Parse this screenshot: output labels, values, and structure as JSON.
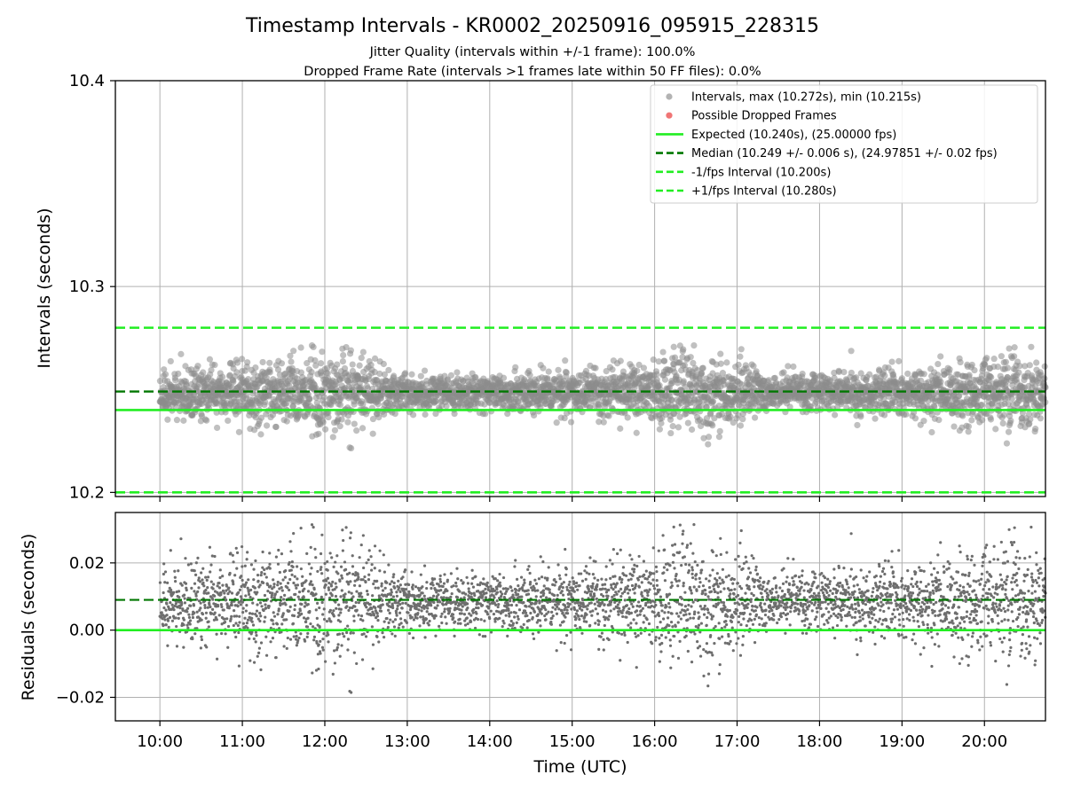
{
  "chart_data": {
    "type": "scatter",
    "title": "Timestamp Intervals - KR0002_20250916_095915_228315",
    "subtitle_lines": [
      "Jitter Quality (intervals within +/-1 frame): 100.0%",
      "Dropped Frame Rate (intervals >1 frames late within 50 FF files): 0.0%"
    ],
    "xlabel": "Time (UTC)",
    "x_tick_labels": [
      "10:00",
      "11:00",
      "12:00",
      "13:00",
      "14:00",
      "15:00",
      "16:00",
      "17:00",
      "18:00",
      "19:00",
      "20:00"
    ],
    "x_range_hours": [
      9.46,
      20.74
    ],
    "top_panel": {
      "ylabel": "Intervals (seconds)",
      "ylim": [
        10.198,
        10.4
      ],
      "y_ticks": [
        10.2,
        10.3,
        10.4
      ],
      "y_tick_labels": [
        "10.2",
        "10.3",
        "10.4"
      ],
      "grid": true,
      "expected": 10.24,
      "median": 10.249,
      "minus_interval": 10.2,
      "plus_interval": 10.28,
      "max_interval": 10.272,
      "min_interval": 10.215
    },
    "bottom_panel": {
      "ylabel": "Residuals (seconds)",
      "ylim": [
        -0.027,
        0.035
      ],
      "y_ticks": [
        -0.02,
        0.0,
        0.02
      ],
      "y_tick_labels": [
        "−0.02",
        "0.00",
        "0.02"
      ],
      "grid": true,
      "zero_line": 0.0,
      "median_residual": 0.009
    },
    "legend": {
      "placement": "upper right",
      "entries": [
        {
          "label": "Intervals, max (10.272s), min (10.215s)",
          "marker": "dot",
          "color": "#999999"
        },
        {
          "label": "Possible Dropped Frames",
          "marker": "dot",
          "color": "#ee6666"
        },
        {
          "label": "Expected (10.240s), (25.00000 fps)",
          "marker": "solid",
          "color": "#22ee22"
        },
        {
          "label": "Median (10.249 +/- 0.006 s), (24.97851 +/- 0.02 fps)",
          "marker": "dashed",
          "color": "#007700"
        },
        {
          "label": "-1/fps Interval (10.200s)",
          "marker": "dashed",
          "color": "#22ee22"
        },
        {
          "label": "+1/fps Interval (10.280s)",
          "marker": "dashed",
          "color": "#22ee22"
        }
      ]
    },
    "series": [
      {
        "name": "Intervals",
        "x_start_hours": 10.0,
        "x_end_hours": 20.74,
        "sample_count": 3780,
        "center_value": 10.2485,
        "spread_sd_by_hour": [
          {
            "x": 10.0,
            "sd": 0.005
          },
          {
            "x": 11.0,
            "sd": 0.007
          },
          {
            "x": 12.0,
            "sd": 0.01
          },
          {
            "x": 12.5,
            "sd": 0.008
          },
          {
            "x": 13.0,
            "sd": 0.004
          },
          {
            "x": 15.0,
            "sd": 0.005
          },
          {
            "x": 16.0,
            "sd": 0.008
          },
          {
            "x": 16.5,
            "sd": 0.01
          },
          {
            "x": 17.0,
            "sd": 0.007
          },
          {
            "x": 17.5,
            "sd": 0.004
          },
          {
            "x": 19.5,
            "sd": 0.006
          },
          {
            "x": 20.0,
            "sd": 0.008
          },
          {
            "x": 20.74,
            "sd": 0.009
          }
        ]
      }
    ],
    "colors": {
      "interval_points": "#8c8c8c",
      "residual_points": "#6e6e6e",
      "expected_line": "#22ee22",
      "median_line": "#007700",
      "fps_interval_lines": "#22ee22",
      "grid": "#b0b0b0"
    }
  }
}
